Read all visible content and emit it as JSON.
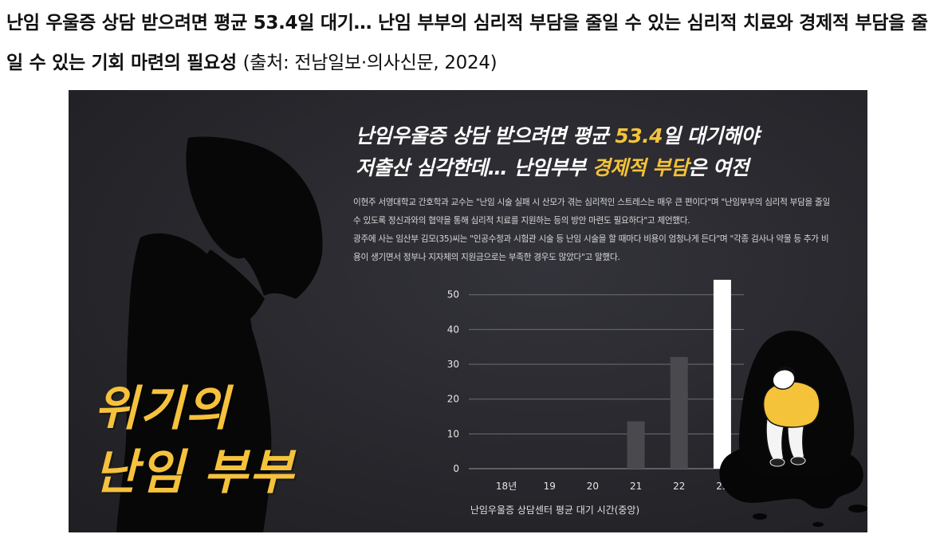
{
  "caption": {
    "headline": "난임 우울증 상담 받으려면 평균 53.4일 대기… 난임 부부의 심리적 부담을 줄일 수 있는 심리적 치료와 경제적 부담을 줄일 수 있는 기회 마련의 필요성",
    "source": "(출처:  전남일보·의사신문, 2024)"
  },
  "infographic": {
    "headline_line1_pre": "난임우울증 상담 받으려면 평균 ",
    "headline_line1_hl": "53.4",
    "headline_line1_post": "일 대기해야",
    "headline_line2_pre": "저출산 심각한데… 난임부부 ",
    "headline_line2_hl": "경제적 부담",
    "headline_line2_post": "은 여전",
    "body_p1": "이현주 서영대학교 간호학과 교수는 \"난임 시술 실패 시 산모가 겪는 심리적인 스트레스는 매우 큰 편이다\"며 \"난임부부의 심리적 부담을 줄일 수 있도록 정신과와의 협약을 통해 심리적 치료를 지원하는 등의 방안 마련도 필요하다\"고 제언했다.",
    "body_p2": "광주에 사는 임산부 김모(35)씨는 \"인공수정과 시험관 시술 등 난임 시술을 할 때마다 비용이 엄청나게 든다\"며 \"각종 검사나 약물 등 추가 비용이 생기면서 정부나 지자체의 지원금으로는 부족한 경우도 많았다\"고 말했다.",
    "big_title_line1": "위기의",
    "big_title_line2": "난임 부부",
    "accent_color": "#f4c33a",
    "bar_colors": [
      "#4a494e",
      "#4a494e",
      "#4a494e",
      "#4a494e",
      "#4a494e",
      "#ffffff"
    ]
  },
  "chart_data": {
    "type": "bar",
    "categories": [
      "18년",
      "19",
      "20",
      "21",
      "22",
      "23"
    ],
    "values": [
      0,
      0,
      0,
      13.6,
      32.1,
      54.4
    ],
    "xlabel": "난임우울증 상담센터 평균 대기 시간(중앙)",
    "ylabel": "",
    "ylim": [
      0,
      50
    ],
    "yticks": [
      0,
      10,
      20,
      30,
      40,
      50
    ],
    "grid": true
  }
}
